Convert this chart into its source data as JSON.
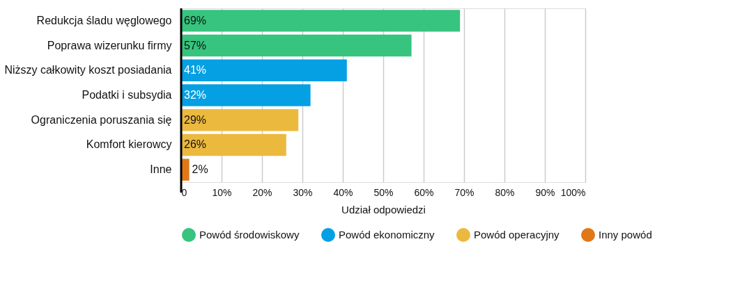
{
  "chart_data": {
    "type": "bar",
    "orientation": "horizontal",
    "xlabel": "Udział odpowiedzi",
    "categories": [
      "Redukcja śladu węglowego",
      "Poprawa wizerunku firmy",
      "Niższy całkowity koszt posiadania",
      "Podatki i subsydia",
      "Ograniczenia poruszania się",
      "Komfort kierowcy",
      "Inne"
    ],
    "series": [
      {
        "name": "Powód środowiskowy",
        "color": "#36c47e",
        "values": [
          69,
          57,
          null,
          null,
          null,
          null,
          null
        ],
        "value_labels": [
          "69%",
          "57%",
          null,
          null,
          null,
          null,
          null
        ]
      },
      {
        "name": "Powód ekonomiczny",
        "color": "#05a0e3",
        "values": [
          null,
          null,
          41,
          32,
          null,
          null,
          null
        ],
        "value_labels": [
          null,
          null,
          "41%",
          "32%",
          null,
          null,
          null
        ]
      },
      {
        "name": "Powód operacyjny",
        "color": "#ecb93f",
        "values": [
          null,
          null,
          null,
          null,
          29,
          26,
          null
        ],
        "value_labels": [
          null,
          null,
          null,
          null,
          "29%",
          "26%",
          null
        ]
      },
      {
        "name": "Inny powód",
        "color": "#e07818",
        "values": [
          null,
          null,
          null,
          null,
          null,
          null,
          2
        ],
        "value_labels": [
          null,
          null,
          null,
          null,
          null,
          null,
          "2%"
        ]
      }
    ],
    "xlim": [
      0,
      100
    ],
    "xticks": [
      0,
      {
        "value": 10,
        "label": "10%"
      },
      {
        "value": 20,
        "label": "20%"
      },
      {
        "value": 30,
        "label": "30%"
      },
      {
        "value": 40,
        "label": "40%"
      },
      {
        "value": 50,
        "label": "50%"
      },
      {
        "value": 60,
        "label": "60%"
      },
      {
        "value": 70,
        "label": "70%"
      },
      {
        "value": 80,
        "label": "80%"
      },
      {
        "value": 90,
        "label": "90%"
      },
      {
        "value": 100,
        "label": "100%"
      }
    ],
    "grid": "x",
    "legend": "bottom"
  }
}
